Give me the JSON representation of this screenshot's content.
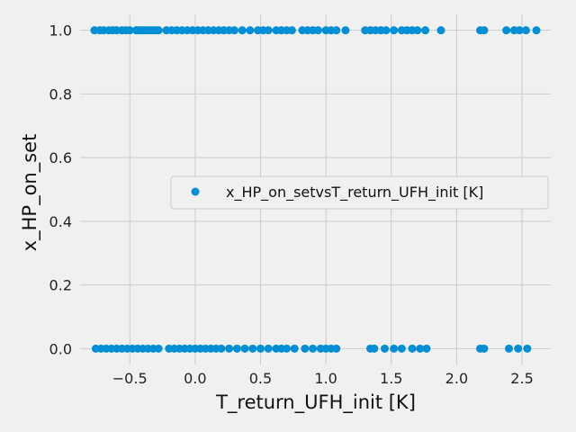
{
  "chart_data": {
    "type": "scatter",
    "xlabel": "T_return_UFH_init [K]",
    "ylabel": "x_HP_on_set",
    "xlim": [
      -0.88,
      2.72
    ],
    "ylim": [
      -0.05,
      1.05
    ],
    "x_ticks": [
      "−0.5",
      "0.0",
      "0.5",
      "1.0",
      "1.5",
      "2.0",
      "2.5"
    ],
    "x_tick_values": [
      -0.5,
      0.0,
      0.5,
      1.0,
      1.5,
      2.0,
      2.5
    ],
    "y_ticks": [
      "0.0",
      "0.2",
      "0.4",
      "0.6",
      "0.8",
      "1.0"
    ],
    "y_tick_values": [
      0.0,
      0.2,
      0.4,
      0.6,
      0.8,
      1.0
    ],
    "grid": true,
    "legend_position": "center-right",
    "series": [
      {
        "name": "x_HP_on_setvsT_return_UFH_init [K]",
        "color": "#008fd5",
        "points": [
          {
            "x": -0.77,
            "y": 1
          },
          {
            "x": -0.73,
            "y": 1
          },
          {
            "x": -0.7,
            "y": 1
          },
          {
            "x": -0.66,
            "y": 1
          },
          {
            "x": -0.63,
            "y": 1
          },
          {
            "x": -0.6,
            "y": 1
          },
          {
            "x": -0.56,
            "y": 1
          },
          {
            "x": -0.53,
            "y": 1
          },
          {
            "x": -0.5,
            "y": 1
          },
          {
            "x": -0.45,
            "y": 1
          },
          {
            "x": -0.45,
            "y": 1
          },
          {
            "x": -0.44,
            "y": 1
          },
          {
            "x": -0.42,
            "y": 1
          },
          {
            "x": -0.4,
            "y": 1
          },
          {
            "x": -0.38,
            "y": 1
          },
          {
            "x": -0.36,
            "y": 1
          },
          {
            "x": -0.34,
            "y": 1
          },
          {
            "x": -0.32,
            "y": 1
          },
          {
            "x": -0.3,
            "y": 1
          },
          {
            "x": -0.28,
            "y": 1
          },
          {
            "x": -0.22,
            "y": 1
          },
          {
            "x": -0.18,
            "y": 1
          },
          {
            "x": -0.14,
            "y": 1
          },
          {
            "x": -0.1,
            "y": 1
          },
          {
            "x": -0.06,
            "y": 1
          },
          {
            "x": -0.02,
            "y": 1
          },
          {
            "x": 0.02,
            "y": 1
          },
          {
            "x": 0.06,
            "y": 1
          },
          {
            "x": 0.1,
            "y": 1
          },
          {
            "x": 0.14,
            "y": 1
          },
          {
            "x": 0.18,
            "y": 1
          },
          {
            "x": 0.22,
            "y": 1
          },
          {
            "x": 0.26,
            "y": 1
          },
          {
            "x": 0.3,
            "y": 1
          },
          {
            "x": 0.36,
            "y": 1
          },
          {
            "x": 0.42,
            "y": 1
          },
          {
            "x": 0.48,
            "y": 1
          },
          {
            "x": 0.52,
            "y": 1
          },
          {
            "x": 0.56,
            "y": 1
          },
          {
            "x": 0.62,
            "y": 1
          },
          {
            "x": 0.66,
            "y": 1
          },
          {
            "x": 0.7,
            "y": 1
          },
          {
            "x": 0.74,
            "y": 1
          },
          {
            "x": 0.82,
            "y": 1
          },
          {
            "x": 0.86,
            "y": 1
          },
          {
            "x": 0.9,
            "y": 1
          },
          {
            "x": 0.94,
            "y": 1
          },
          {
            "x": 1.0,
            "y": 1
          },
          {
            "x": 1.04,
            "y": 1
          },
          {
            "x": 1.08,
            "y": 1
          },
          {
            "x": 1.15,
            "y": 1
          },
          {
            "x": 1.3,
            "y": 1
          },
          {
            "x": 1.34,
            "y": 1
          },
          {
            "x": 1.38,
            "y": 1
          },
          {
            "x": 1.42,
            "y": 1
          },
          {
            "x": 1.46,
            "y": 1
          },
          {
            "x": 1.52,
            "y": 1
          },
          {
            "x": 1.58,
            "y": 1
          },
          {
            "x": 1.62,
            "y": 1
          },
          {
            "x": 1.66,
            "y": 1
          },
          {
            "x": 1.7,
            "y": 1
          },
          {
            "x": 1.76,
            "y": 1
          },
          {
            "x": 1.88,
            "y": 1
          },
          {
            "x": 2.18,
            "y": 1
          },
          {
            "x": 2.21,
            "y": 1
          },
          {
            "x": 2.38,
            "y": 1
          },
          {
            "x": 2.44,
            "y": 1
          },
          {
            "x": 2.48,
            "y": 1
          },
          {
            "x": 2.53,
            "y": 1
          },
          {
            "x": 2.61,
            "y": 1
          },
          {
            "x": -0.76,
            "y": 0
          },
          {
            "x": -0.72,
            "y": 0
          },
          {
            "x": -0.68,
            "y": 0
          },
          {
            "x": -0.64,
            "y": 0
          },
          {
            "x": -0.6,
            "y": 0
          },
          {
            "x": -0.56,
            "y": 0
          },
          {
            "x": -0.52,
            "y": 0
          },
          {
            "x": -0.48,
            "y": 0
          },
          {
            "x": -0.44,
            "y": 0
          },
          {
            "x": -0.4,
            "y": 0
          },
          {
            "x": -0.36,
            "y": 0
          },
          {
            "x": -0.32,
            "y": 0
          },
          {
            "x": -0.28,
            "y": 0
          },
          {
            "x": -0.2,
            "y": 0
          },
          {
            "x": -0.16,
            "y": 0
          },
          {
            "x": -0.12,
            "y": 0
          },
          {
            "x": -0.08,
            "y": 0
          },
          {
            "x": -0.04,
            "y": 0
          },
          {
            "x": 0.0,
            "y": 0
          },
          {
            "x": 0.04,
            "y": 0
          },
          {
            "x": 0.08,
            "y": 0
          },
          {
            "x": 0.12,
            "y": 0
          },
          {
            "x": 0.16,
            "y": 0
          },
          {
            "x": 0.2,
            "y": 0
          },
          {
            "x": 0.26,
            "y": 0
          },
          {
            "x": 0.32,
            "y": 0
          },
          {
            "x": 0.38,
            "y": 0
          },
          {
            "x": 0.44,
            "y": 0
          },
          {
            "x": 0.5,
            "y": 0
          },
          {
            "x": 0.56,
            "y": 0
          },
          {
            "x": 0.62,
            "y": 0
          },
          {
            "x": 0.66,
            "y": 0
          },
          {
            "x": 0.7,
            "y": 0
          },
          {
            "x": 0.76,
            "y": 0
          },
          {
            "x": 0.84,
            "y": 0
          },
          {
            "x": 0.9,
            "y": 0
          },
          {
            "x": 0.96,
            "y": 0
          },
          {
            "x": 1.0,
            "y": 0
          },
          {
            "x": 1.04,
            "y": 0
          },
          {
            "x": 1.08,
            "y": 0
          },
          {
            "x": 1.34,
            "y": 0
          },
          {
            "x": 1.37,
            "y": 0
          },
          {
            "x": 1.45,
            "y": 0
          },
          {
            "x": 1.52,
            "y": 0
          },
          {
            "x": 1.58,
            "y": 0
          },
          {
            "x": 1.66,
            "y": 0
          },
          {
            "x": 1.72,
            "y": 0
          },
          {
            "x": 1.77,
            "y": 0
          },
          {
            "x": 2.18,
            "y": 0
          },
          {
            "x": 2.21,
            "y": 0
          },
          {
            "x": 2.4,
            "y": 0
          },
          {
            "x": 2.47,
            "y": 0
          },
          {
            "x": 2.54,
            "y": 0
          }
        ]
      }
    ]
  }
}
